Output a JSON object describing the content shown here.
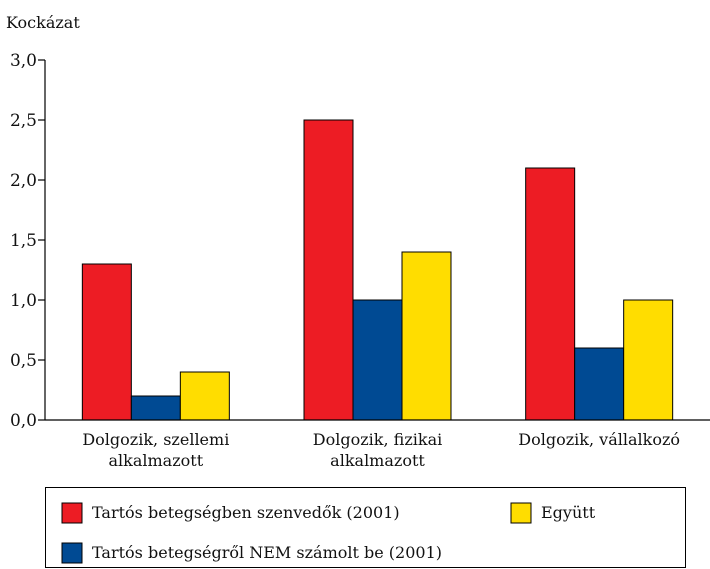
{
  "chart_data": {
    "type": "bar",
    "y_label": "Kockázat",
    "categories": [
      "Dolgozik, szellemi alkalmazott",
      "Dolgozik, fizikai alkalmazott",
      "Dolgozik, vállalkozó"
    ],
    "series": [
      {
        "name": "Tartós betegségben szenvedők (2001)",
        "color": "#ed1c24",
        "values": [
          1.3,
          2.5,
          2.1
        ]
      },
      {
        "name": "Tartós betegségről NEM számolt be (2001)",
        "color": "#004a93",
        "values": [
          0.2,
          1.0,
          0.6
        ]
      },
      {
        "name": "Együtt",
        "color": "#ffdd00",
        "values": [
          0.4,
          1.4,
          1.0
        ]
      }
    ],
    "ylim": [
      0,
      3
    ],
    "yticks": [
      {
        "value": 0,
        "label": "0,0"
      },
      {
        "value": 0.5,
        "label": "0,5"
      },
      {
        "value": 1,
        "label": "1,0"
      },
      {
        "value": 1.5,
        "label": "1,5"
      },
      {
        "value": 2,
        "label": "2,0"
      },
      {
        "value": 2.5,
        "label": "2,5"
      },
      {
        "value": 3,
        "label": "3,0"
      }
    ],
    "grid": false,
    "legend": "bottom"
  }
}
